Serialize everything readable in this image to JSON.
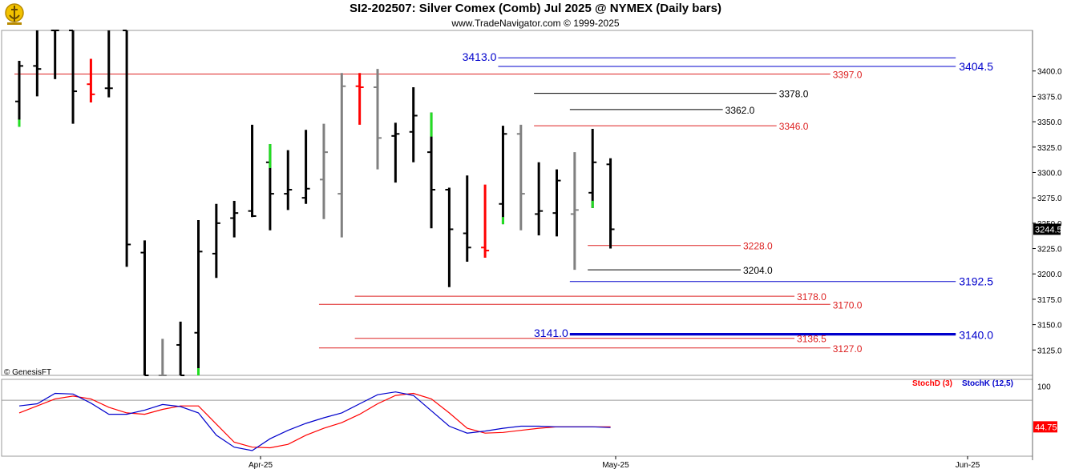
{
  "header": {
    "title": "SI2-202507:  Silver Comex (Comb) Jul 2025 @ NYMEX  (Daily bars)",
    "subtitle": "www.TradeNavigator.com © 1999-2025"
  },
  "watermark": "© GenesisFT",
  "colors": {
    "black": "#000000",
    "gray": "#808080",
    "red": "#ff0000",
    "green": "#22dd22",
    "blue": "#0000cc",
    "level_red": "#dd2222",
    "axis_text": "#000000"
  },
  "chart_data": [
    {
      "type": "ohlc-bar",
      "name": "Silver Comex (Comb) Jul 2025 daily bars",
      "ylim": [
        3100,
        3440
      ],
      "yticks": [
        3125,
        3150,
        3175,
        3200,
        3225,
        3250,
        3275,
        3300,
        3325,
        3350,
        3375,
        3400
      ],
      "ytick_labels": [
        "3125.0",
        "3150.0",
        "3175.0",
        "3200.0",
        "3225.0",
        "3250.0",
        "3275.0",
        "3300.0",
        "3325.0",
        "3350.0",
        "3375.0",
        "3400.0"
      ],
      "x_dates": [
        "Apr-25",
        "May-25",
        "Jun-25"
      ],
      "last_price_label": "3244.5",
      "bars": [
        {
          "o": 3370,
          "h": 3410,
          "l": 3345,
          "c": 3405,
          "color": "black",
          "low_tick_color": "green"
        },
        {
          "o": 3405,
          "h": 3440,
          "l": 3375,
          "c": 3402,
          "color": "black"
        },
        {
          "o": 3440,
          "h": 3440,
          "l": 3392,
          "c": 3440,
          "color": "black"
        },
        {
          "o": 3440,
          "h": 3440,
          "l": 3348,
          "c": 3380,
          "color": "black"
        },
        {
          "o": 3387,
          "h": 3412,
          "l": 3369,
          "c": 3377,
          "color": "red"
        },
        {
          "o": 3383,
          "h": 3440,
          "l": 3374,
          "c": 3383,
          "color": "black"
        },
        {
          "o": 3440,
          "h": 3440,
          "l": 3207,
          "c": 3229,
          "color": "black"
        },
        {
          "o": 3221,
          "h": 3233,
          "l": 3100,
          "c": 3100,
          "color": "black"
        },
        {
          "o": 3100,
          "h": 3136,
          "l": 3100,
          "c": 3100,
          "color": "gray"
        },
        {
          "o": 3130,
          "h": 3153,
          "l": 3100,
          "c": 3100,
          "color": "black"
        },
        {
          "o": 3142,
          "h": 3253,
          "l": 3100,
          "c": 3222,
          "color": "black",
          "low_tick_color": "green"
        },
        {
          "o": 3220,
          "h": 3269,
          "l": 3196,
          "c": 3250,
          "color": "black"
        },
        {
          "o": 3255,
          "h": 3272,
          "l": 3236,
          "c": 3260,
          "color": "black"
        },
        {
          "o": 3262,
          "h": 3347,
          "l": 3256,
          "c": 3257,
          "color": "black"
        },
        {
          "o": 3310,
          "h": 3328,
          "l": 3243,
          "c": 3279,
          "color": "black",
          "high_tick_color": "green"
        },
        {
          "o": 3279,
          "h": 3322,
          "l": 3263,
          "c": 3283,
          "color": "black"
        },
        {
          "o": 3275,
          "h": 3342,
          "l": 3269,
          "c": 3284,
          "color": "black"
        },
        {
          "o": 3293,
          "h": 3348,
          "l": 3254,
          "c": 3320,
          "color": "gray"
        },
        {
          "o": 3279,
          "h": 3398,
          "l": 3236,
          "c": 3385,
          "color": "gray"
        },
        {
          "o": 3385,
          "h": 3398,
          "l": 3347,
          "c": 3384,
          "color": "red"
        },
        {
          "o": 3384,
          "h": 3402,
          "l": 3303,
          "c": 3334,
          "color": "gray"
        },
        {
          "o": 3336,
          "h": 3349,
          "l": 3290,
          "c": 3338,
          "color": "black"
        },
        {
          "o": 3340,
          "h": 3384,
          "l": 3310,
          "c": 3356,
          "color": "black"
        },
        {
          "o": 3320,
          "h": 3359,
          "l": 3245,
          "c": 3283,
          "color": "black",
          "high_tick_color": "green"
        },
        {
          "o": 3283,
          "h": 3285,
          "l": 3187,
          "c": 3244,
          "color": "black"
        },
        {
          "o": 3240,
          "h": 3297,
          "l": 3212,
          "c": 3226,
          "color": "black"
        },
        {
          "o": 3226,
          "h": 3288,
          "l": 3216,
          "c": 3223,
          "color": "red"
        },
        {
          "o": 3269,
          "h": 3346,
          "l": 3249,
          "c": 3338,
          "color": "black",
          "low_tick_color": "green"
        },
        {
          "o": 3338,
          "h": 3347,
          "l": 3243,
          "c": 3279,
          "color": "gray"
        },
        {
          "o": 3259,
          "h": 3310,
          "l": 3238,
          "c": 3262,
          "color": "black"
        },
        {
          "o": 3260,
          "h": 3303,
          "l": 3237,
          "c": 3292,
          "color": "black"
        },
        {
          "o": 3259,
          "h": 3320,
          "l": 3204,
          "c": 3263,
          "color": "gray"
        },
        {
          "o": 3280,
          "h": 3343,
          "l": 3265,
          "c": 3310,
          "color": "black",
          "low_tick_color": "green"
        },
        {
          "o": 3308,
          "h": 3314,
          "l": 3225,
          "c": 3244,
          "color": "black"
        }
      ],
      "levels": [
        {
          "value": 3413.0,
          "label": "3413.0",
          "color": "blue",
          "label_side": "left",
          "start_bar": 27,
          "end_bar": 52
        },
        {
          "value": 3404.5,
          "label": "3404.5",
          "color": "blue",
          "label_side": "right",
          "start_bar": 27,
          "end_bar": 52
        },
        {
          "value": 3397.0,
          "label": "3397.0",
          "color": "red",
          "label_side": "right",
          "start_bar": 0,
          "end_bar": 45
        },
        {
          "value": 3378.0,
          "label": "3378.0",
          "color": "black",
          "label_side": "right",
          "start_bar": 29,
          "end_bar": 42
        },
        {
          "value": 3362.0,
          "label": "3362.0",
          "color": "black",
          "label_side": "right",
          "start_bar": 31,
          "end_bar": 39
        },
        {
          "value": 3346.0,
          "label": "3346.0",
          "color": "red",
          "label_side": "right",
          "start_bar": 29,
          "end_bar": 42
        },
        {
          "value": 3228.0,
          "label": "3228.0",
          "color": "red",
          "label_side": "right",
          "start_bar": 32,
          "end_bar": 40
        },
        {
          "value": 3204.0,
          "label": "3204.0",
          "color": "black",
          "label_side": "right",
          "start_bar": 32,
          "end_bar": 40
        },
        {
          "value": 3192.5,
          "label": "3192.5",
          "color": "blue",
          "label_side": "right",
          "start_bar": 31,
          "end_bar": 52
        },
        {
          "value": 3178.0,
          "label": "3178.0",
          "color": "red",
          "label_side": "right",
          "start_bar": 19,
          "end_bar": 43
        },
        {
          "value": 3170.0,
          "label": "3170.0",
          "color": "red",
          "label_side": "right",
          "start_bar": 17,
          "end_bar": 45
        },
        {
          "value": 3141.0,
          "label": "3141.0",
          "color": "blue",
          "label_side": "left",
          "start_bar": 31,
          "end_bar": 52
        },
        {
          "value": 3140.0,
          "label": "3140.0",
          "color": "blue",
          "label_side": "right",
          "start_bar": 31,
          "end_bar": 52
        },
        {
          "value": 3136.5,
          "label": "3136.5",
          "color": "red",
          "label_side": "right",
          "start_bar": 19,
          "end_bar": 43
        },
        {
          "value": 3127.0,
          "label": "3127.0",
          "color": "red",
          "label_side": "right",
          "start_bar": 17,
          "end_bar": 45
        }
      ]
    },
    {
      "type": "line",
      "name": "Stochastic",
      "ylim": [
        0,
        110
      ],
      "yticks": [
        100
      ],
      "ytick_labels": [
        "100"
      ],
      "reference_lines": [
        80
      ],
      "last_value_label": "44.75",
      "series": [
        {
          "name": "StochD (3)",
          "color": "red",
          "values": [
            62,
            72,
            82,
            86,
            82,
            70,
            62,
            60,
            67,
            72,
            72,
            46,
            20,
            13,
            12,
            17,
            30,
            40,
            48,
            60,
            75,
            87,
            90,
            82,
            62,
            40,
            33,
            34,
            37,
            40,
            42,
            42,
            42,
            42
          ]
        },
        {
          "name": "StochK (12,5)",
          "color": "blue",
          "values": [
            72,
            75,
            90,
            89,
            76,
            60,
            60,
            66,
            74,
            71,
            62,
            30,
            13,
            8,
            25,
            37,
            47,
            55,
            62,
            75,
            88,
            92,
            87,
            65,
            43,
            33,
            36,
            40,
            43,
            43,
            42,
            42,
            42,
            41
          ]
        }
      ]
    }
  ]
}
